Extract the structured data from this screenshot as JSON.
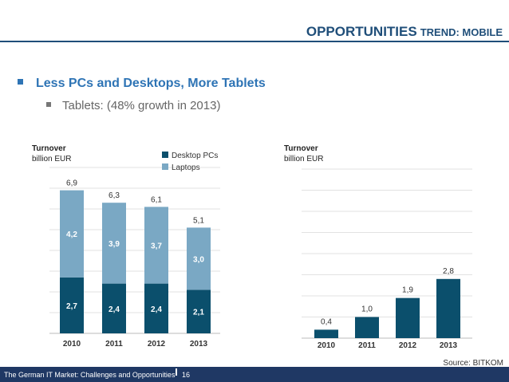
{
  "header": {
    "title_main": "OPPORTUNITIES",
    "title_sub": "TREND: MOBILE"
  },
  "bullets": {
    "level1": "Less PCs and Desktops, More Tablets",
    "level2": "Tablets: (48% growth in 2013)"
  },
  "left_chart": {
    "unit_line1": "Turnover",
    "unit_line2": "billion EUR"
  },
  "right_chart": {
    "unit_line1": "Turnover",
    "unit_line2": "billion EUR"
  },
  "source": "Source: BITKOM",
  "footer": {
    "text": "The German IT Market: Challenges and Opportunities",
    "page": "16"
  },
  "colors": {
    "desktop": "#0b4f6c",
    "laptop": "#7aa8c4",
    "tablet": "#0b4f6c",
    "brand": "#1f4e79"
  },
  "chart_data": [
    {
      "type": "bar",
      "stacked": true,
      "title": "",
      "ylabel": "Turnover billion EUR",
      "categories": [
        "2010",
        "2011",
        "2012",
        "2013"
      ],
      "series": [
        {
          "name": "Desktop PCs",
          "values": [
            2.7,
            2.4,
            2.4,
            2.1
          ],
          "labels": [
            "2,7",
            "2,4",
            "2,4",
            "2,1"
          ],
          "color": "#0b4f6c"
        },
        {
          "name": "Laptops",
          "values": [
            4.2,
            3.9,
            3.7,
            3.0
          ],
          "labels": [
            "4,2",
            "3,9",
            "3,7",
            "3,0"
          ],
          "color": "#7aa8c4"
        }
      ],
      "totals": [
        6.9,
        6.3,
        6.1,
        5.1
      ],
      "total_labels": [
        "6,9",
        "6,3",
        "6,1",
        "5,1"
      ],
      "ylim": [
        0,
        8
      ],
      "legend": "top-right",
      "grid": true
    },
    {
      "type": "bar",
      "title": "",
      "ylabel": "Turnover billion EUR",
      "categories": [
        "2010",
        "2011",
        "2012",
        "2013"
      ],
      "values": [
        0.4,
        1.0,
        1.9,
        2.8
      ],
      "labels": [
        "0,4",
        "1,0",
        "1,9",
        "2,8"
      ],
      "ylim": [
        0,
        8
      ],
      "grid": true
    }
  ]
}
